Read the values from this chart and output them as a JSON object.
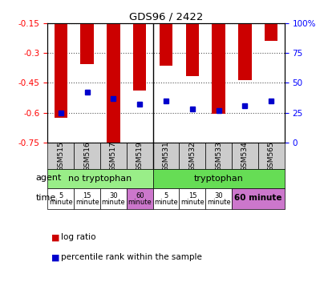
{
  "title": "GDS96 / 2422",
  "samples": [
    "GSM515",
    "GSM516",
    "GSM517",
    "GSM519",
    "GSM531",
    "GSM532",
    "GSM533",
    "GSM534",
    "GSM565"
  ],
  "log_ratio": [
    -0.625,
    -0.355,
    -0.77,
    -0.49,
    -0.365,
    -0.415,
    -0.605,
    -0.435,
    -0.24
  ],
  "percentile": [
    25,
    42,
    37,
    32,
    35,
    28,
    27,
    31,
    35
  ],
  "ylim_left": [
    -0.75,
    -0.15
  ],
  "ylim_right": [
    0,
    100
  ],
  "yticks_left": [
    -0.75,
    -0.6,
    -0.45,
    -0.3,
    -0.15
  ],
  "yticks_right": [
    0,
    25,
    50,
    75,
    100
  ],
  "bar_color": "#cc0000",
  "dot_color": "#0000cc",
  "agent_no_tryp_color": "#99ee88",
  "agent_tryp_color": "#66dd55",
  "time_white": "#ffffff",
  "time_pink": "#cc77cc",
  "xtick_bg": "#cccccc",
  "grid_color": "#555555",
  "legend_bar_label": "log ratio",
  "legend_dot_label": "percentile rank within the sample",
  "agent_label_no": "no tryptophan",
  "agent_label_yes": "tryptophan",
  "row_label_agent": "agent",
  "row_label_time": "time",
  "time_no_tryp": [
    "5",
    "15",
    "30",
    "60"
  ],
  "time_tryp": [
    "5",
    "15",
    "30",
    "60 minute"
  ],
  "no_tryp_count": 4,
  "tryp_count": 5
}
